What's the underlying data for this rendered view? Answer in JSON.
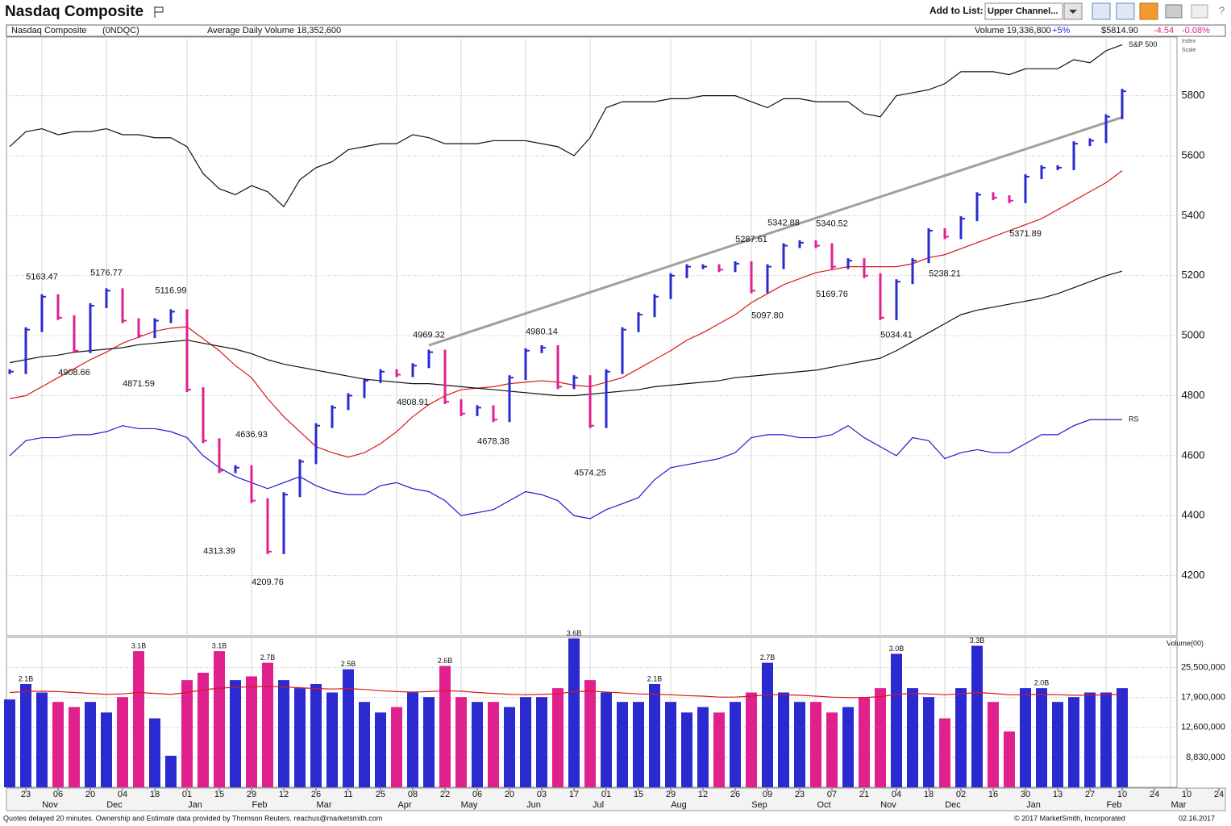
{
  "header": {
    "title": "Nasdaq Composite",
    "add_to_list": "Add to List:",
    "list_choice": "Upper Channel..."
  },
  "info": {
    "name": "Nasdaq Composite",
    "symbol": "(0NDQC)",
    "avg_volume": "Average Daily Volume 18,352,600",
    "volume": "Volume 19,336,800",
    "volume_change": "+5%",
    "price": "$5814.90",
    "change": "-4.54",
    "change_pct": "-0.08%",
    "index_scale": [
      "Index",
      "Scale"
    ]
  },
  "footer": {
    "left": "Quotes delayed 20 minutes. Ownership and Estimate data provided by Thomson Reuters. reachus@marketsmith.com",
    "copyright": "© 2017 MarketSmith, Incorporated",
    "date": "02.16.2017"
  },
  "x_axis": {
    "categories": [
      null,
      "23",
      null,
      "06",
      null,
      "20",
      null,
      "04",
      null,
      "18",
      null,
      "01",
      null,
      "15",
      null,
      "29",
      null,
      "12",
      null,
      "26",
      null,
      "11",
      null,
      "25",
      null,
      "08",
      null,
      "22",
      null,
      "06",
      null,
      "20",
      null,
      "03",
      null,
      "17",
      null,
      "01",
      null,
      "15",
      null,
      "29",
      null,
      "12",
      null,
      "26",
      null,
      "09",
      null,
      "23",
      null,
      "07",
      null,
      "21",
      null,
      "04",
      null,
      "18",
      null,
      "02",
      null,
      "16",
      null,
      "30",
      null,
      "13",
      null,
      "27",
      null,
      "10",
      null,
      "24",
      null,
      "10",
      null,
      "24"
    ],
    "months": [
      null,
      null,
      "Nov",
      null,
      null,
      null,
      "Dec",
      null,
      null,
      null,
      null,
      "Jan",
      null,
      null,
      null,
      "Feb",
      null,
      null,
      null,
      "Mar",
      null,
      null,
      null,
      null,
      "Apr",
      null,
      null,
      null,
      "May",
      null,
      null,
      null,
      "Jun",
      null,
      null,
      null,
      "Jul",
      null,
      null,
      null,
      null,
      "Aug",
      null,
      null,
      null,
      null,
      "Sep",
      null,
      null,
      null,
      "Oct",
      null,
      null,
      null,
      "Nov",
      null,
      null,
      null,
      "Dec",
      null,
      null,
      null,
      null,
      "Jan",
      null,
      null,
      null,
      null,
      "Feb",
      null,
      null,
      null,
      "Mar",
      null,
      null,
      null
    ]
  },
  "chart_data": [
    {
      "type": "stock",
      "up_color": "#2a2ad0",
      "down_color": "#e0208c",
      "values": [
        4880,
        5020,
        5130,
        5060,
        4950,
        5100,
        5150,
        5050,
        5000,
        5050,
        5080,
        4820,
        4650,
        4550,
        4560,
        4450,
        4280,
        4470,
        4580,
        4700,
        4760,
        4800,
        4850,
        4880,
        4870,
        4900,
        4945,
        4780,
        4740,
        4760,
        4720,
        4860,
        4950,
        4960,
        4830,
        4860,
        4700,
        4880,
        5020,
        5070,
        5130,
        5200,
        5230,
        5230,
        5220,
        5240,
        5150,
        5230,
        5300,
        5310,
        5300,
        5230,
        5250,
        5200,
        5060,
        5180,
        5250,
        5350,
        5330,
        5390,
        5470,
        5460,
        5450,
        5530,
        5560,
        5560,
        5640,
        5650,
        5730,
        5814.9
      ],
      "series": [
        {
          "color": "#d81818",
          "values": [
            4790,
            4800,
            4830,
            4860,
            4890,
            4920,
            4945,
            4975,
            4995,
            5015,
            5025,
            5030,
            4990,
            4950,
            4900,
            4860,
            4790,
            4730,
            4680,
            4630,
            4610,
            4595,
            4610,
            4640,
            4680,
            4730,
            4770,
            4800,
            4820,
            4825,
            4830,
            4840,
            4845,
            4850,
            4845,
            4835,
            4830,
            4845,
            4860,
            4890,
            4920,
            4950,
            4985,
            5010,
            5040,
            5070,
            5110,
            5140,
            5170,
            5190,
            5210,
            5220,
            5230,
            5230,
            5230,
            5230,
            5240,
            5260,
            5270,
            5290,
            5310,
            5330,
            5350,
            5370,
            5390,
            5420,
            5450,
            5480,
            5510,
            5550
          ]
        },
        {
          "color": "#111111",
          "values": [
            4910,
            4920,
            4930,
            4935,
            4945,
            4950,
            4955,
            4960,
            4970,
            4975,
            4980,
            4985,
            4975,
            4965,
            4955,
            4940,
            4920,
            4905,
            4895,
            4885,
            4875,
            4865,
            4855,
            4850,
            4845,
            4840,
            4840,
            4835,
            4830,
            4825,
            4820,
            4815,
            4810,
            4805,
            4800,
            4800,
            4805,
            4810,
            4815,
            4820,
            4830,
            4835,
            4840,
            4845,
            4850,
            4860,
            4865,
            4870,
            4875,
            4880,
            4885,
            4895,
            4905,
            4915,
            4925,
            4950,
            4980,
            5010,
            5040,
            5070,
            5085,
            5095,
            5105,
            5115,
            5125,
            5140,
            5160,
            5180,
            5200,
            5215
          ]
        },
        {
          "name": "S&P 500",
          "color": "#111111",
          "values": [
            5630,
            5680,
            5690,
            5670,
            5680,
            5680,
            5690,
            5670,
            5670,
            5660,
            5660,
            5630,
            5540,
            5490,
            5470,
            5500,
            5480,
            5430,
            5520,
            5560,
            5580,
            5620,
            5630,
            5640,
            5640,
            5670,
            5660,
            5640,
            5640,
            5640,
            5650,
            5650,
            5650,
            5640,
            5630,
            5600,
            5660,
            5760,
            5780,
            5780,
            5780,
            5790,
            5790,
            5800,
            5800,
            5800,
            5780,
            5760,
            5790,
            5790,
            5780,
            5780,
            5780,
            5740,
            5730,
            5800,
            5810,
            5820,
            5840,
            5880,
            5880,
            5880,
            5870,
            5890,
            5890,
            5890,
            5920,
            5910,
            5950,
            5970
          ]
        },
        {
          "name": "RS",
          "color": "#1a1ad0",
          "values": [
            4600,
            4650,
            4660,
            4660,
            4670,
            4670,
            4680,
            4700,
            4690,
            4690,
            4680,
            4660,
            4600,
            4560,
            4530,
            4510,
            4490,
            4510,
            4530,
            4500,
            4480,
            4470,
            4470,
            4500,
            4510,
            4490,
            4480,
            4450,
            4400,
            4410,
            4420,
            4450,
            4480,
            4470,
            4450,
            4400,
            4390,
            4420,
            4440,
            4460,
            4520,
            4560,
            4570,
            4580,
            4590,
            4610,
            4660,
            4670,
            4670,
            4660,
            4660,
            4670,
            4700,
            4660,
            4630,
            4600,
            4660,
            4650,
            4590,
            4610,
            4620,
            4610,
            4610,
            4640,
            4670,
            4670,
            4700,
            4720,
            4720,
            4720
          ]
        }
      ],
      "trendline": {
        "color": "#a0a0a0",
        "x": [
          26,
          69
        ],
        "y": [
          4968,
          5728
        ]
      },
      "annotations": [
        {
          "label": "5163.47",
          "value": 5163.47,
          "x": 2
        },
        {
          "label": "5176.77",
          "value": 5176.77,
          "x": 6
        },
        {
          "label": "5116.99",
          "value": 5116.99,
          "x": 10
        },
        {
          "label": "4908.66",
          "value": 4908.66,
          "x": 4
        },
        {
          "label": "4871.59",
          "value": 4871.59,
          "x": 8
        },
        {
          "label": "4636.93",
          "value": 4636.93,
          "x": 15
        },
        {
          "label": "4313.39",
          "value": 4313.39,
          "x": 13
        },
        {
          "label": "4209.76",
          "value": 4209.76,
          "x": 16
        },
        {
          "label": "4969.32",
          "value": 4969.32,
          "x": 26
        },
        {
          "label": "4808.91",
          "value": 4808.91,
          "x": 25
        },
        {
          "label": "4980.14",
          "value": 4980.14,
          "x": 33
        },
        {
          "label": "4678.38",
          "value": 4678.38,
          "x": 30
        },
        {
          "label": "4574.25",
          "value": 4574.25,
          "x": 36
        },
        {
          "label": "5287.61",
          "value": 5287.61,
          "x": 46
        },
        {
          "label": "5342.88",
          "value": 5342.88,
          "x": 48
        },
        {
          "label": "5340.52",
          "value": 5340.52,
          "x": 51
        },
        {
          "label": "5169.76",
          "value": 5169.76,
          "x": 51
        },
        {
          "label": "5097.80",
          "value": 5097.8,
          "x": 47
        },
        {
          "label": "5034.41",
          "value": 5034.41,
          "x": 55
        },
        {
          "label": "5238.21",
          "value": 5238.21,
          "x": 58
        },
        {
          "label": "5371.89",
          "value": 5371.89,
          "x": 63
        }
      ],
      "ylim": [
        4000,
        5990
      ],
      "yticks": [
        4200,
        4400,
        4600,
        4800,
        5000,
        5200,
        5400,
        5600,
        5800
      ],
      "grid": true
    },
    {
      "type": "bar",
      "ylabel": "Volume(00)",
      "log": true,
      "values": [
        17500000,
        21000000,
        19000000,
        17000000,
        16000000,
        17000000,
        15000000,
        18000000,
        31000000,
        14000000,
        9000000,
        22000000,
        24000000,
        31000000,
        22000000,
        23000000,
        27000000,
        22000000,
        20000000,
        21000000,
        19000000,
        25000000,
        17000000,
        15000000,
        16000000,
        19000000,
        18000000,
        26000000,
        18000000,
        17000000,
        17000000,
        16000000,
        18000000,
        18000000,
        20000000,
        36000000,
        22000000,
        19000000,
        17000000,
        17000000,
        21000000,
        17000000,
        15000000,
        16000000,
        15000000,
        17000000,
        19000000,
        27000000,
        19000000,
        17000000,
        17000000,
        15000000,
        16000000,
        18000000,
        20000000,
        30000000,
        20000000,
        18000000,
        14000000,
        20000000,
        33000000,
        17000000,
        12000000,
        20000000,
        20000000,
        17000000,
        18000000,
        19000000,
        19000000,
        20000000
      ],
      "value_labels": [
        null,
        "2.1B",
        null,
        null,
        null,
        null,
        null,
        null,
        "3.1B",
        null,
        null,
        null,
        null,
        "3.1B",
        null,
        null,
        "2.7B",
        null,
        null,
        null,
        null,
        "2.5B",
        null,
        null,
        null,
        null,
        null,
        "2.6B",
        null,
        null,
        null,
        null,
        null,
        null,
        null,
        "3.6B",
        null,
        null,
        null,
        null,
        "2.1B",
        null,
        null,
        null,
        null,
        null,
        null,
        "2.7B",
        null,
        null,
        null,
        null,
        null,
        null,
        null,
        "3.0B",
        null,
        null,
        null,
        null,
        "3.3B",
        null,
        null,
        null,
        "2.0B",
        null,
        null,
        null,
        null,
        null
      ],
      "average": {
        "color": "#d81818",
        "values": [
          19000000,
          19200000,
          19300000,
          19200000,
          19000000,
          18800000,
          18600000,
          18700000,
          19000000,
          18800000,
          18600000,
          19000000,
          19600000,
          20000000,
          20200000,
          20300000,
          20400000,
          20300000,
          20100000,
          19900000,
          19800000,
          19900000,
          19700000,
          19400000,
          19200000,
          19100000,
          19200000,
          19400000,
          19300000,
          19000000,
          18800000,
          18600000,
          18500000,
          18600000,
          18700000,
          19200000,
          19300000,
          19100000,
          18900000,
          18700000,
          18600000,
          18500000,
          18300000,
          18200000,
          18000000,
          18000000,
          18200000,
          18500000,
          18500000,
          18400000,
          18200000,
          18000000,
          17900000,
          17900000,
          18100000,
          18600000,
          18800000,
          18700000,
          18500000,
          18700000,
          19000000,
          18800000,
          18500000,
          18500000,
          18600000,
          18500000,
          18400000,
          18400000,
          18500000,
          18600000
        ]
      },
      "ylim": [
        6200000,
        36500000
      ],
      "yticks": [
        {
          "value": 8830000,
          "label": "8,830,000"
        },
        {
          "value": 12600000,
          "label": "12,600,000"
        },
        {
          "value": 17900000,
          "label": "17,900,000"
        },
        {
          "value": 25500000,
          "label": "25,500,000"
        }
      ],
      "grid": true
    }
  ]
}
